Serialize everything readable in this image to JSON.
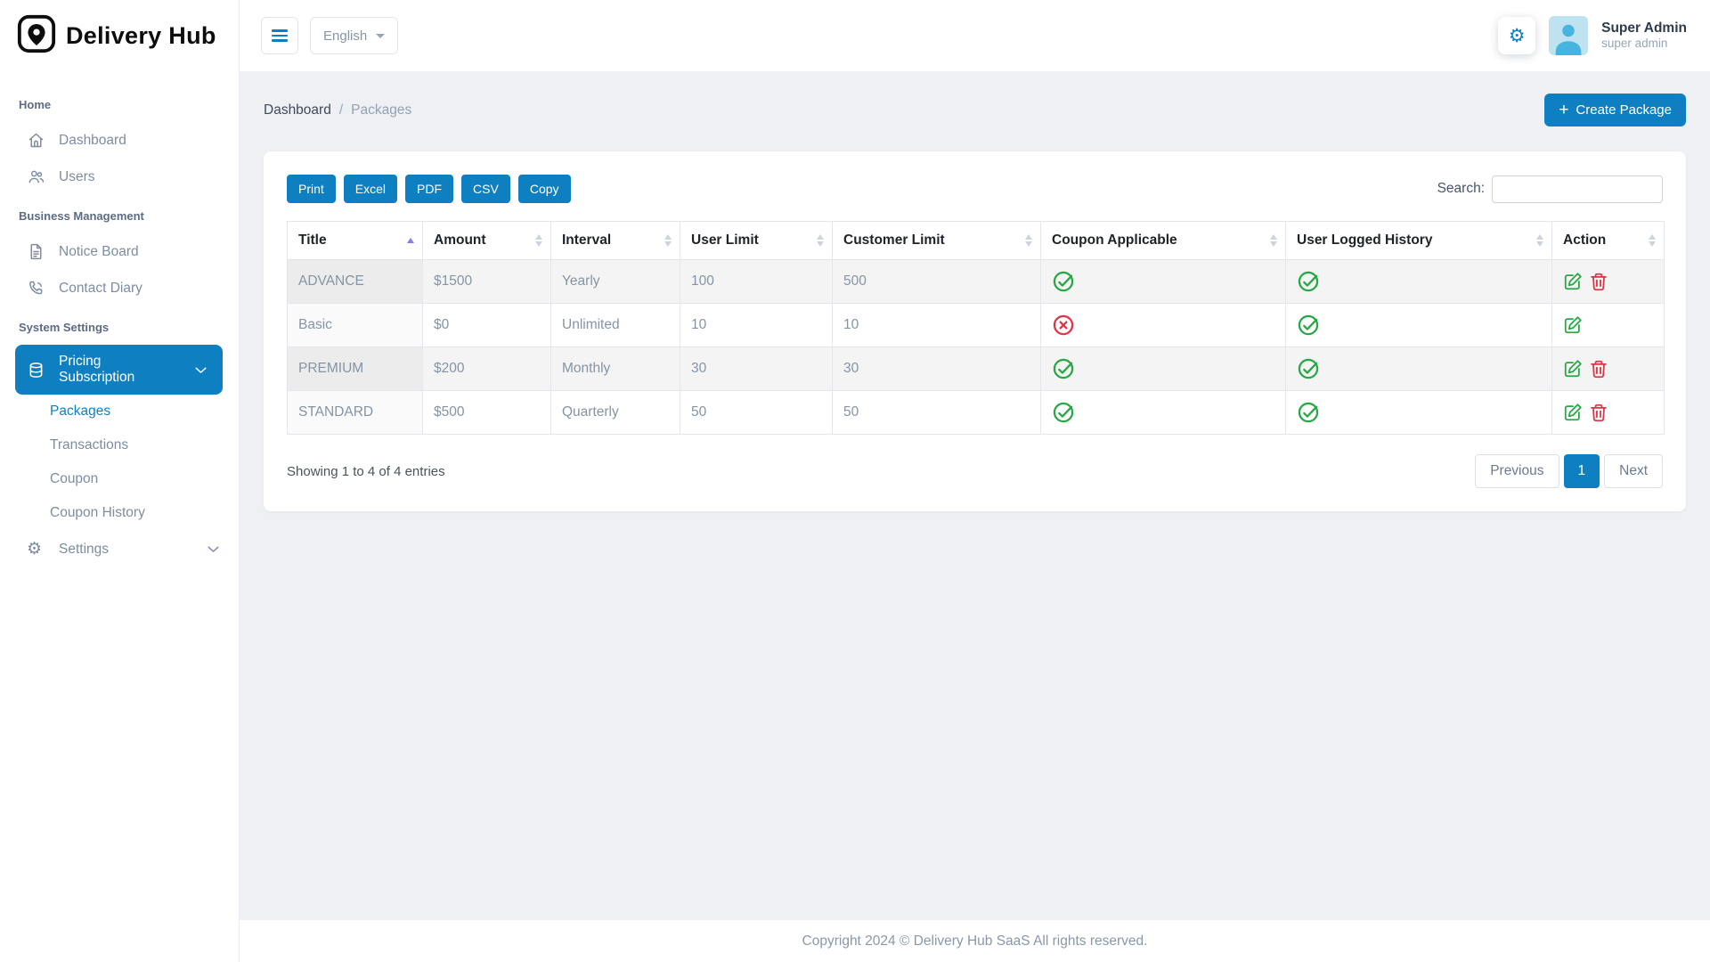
{
  "app": {
    "title": "Delivery Hub"
  },
  "topbar": {
    "language": "English",
    "user": {
      "name": "Super Admin",
      "role": "super admin"
    }
  },
  "sidebar": {
    "sections": [
      {
        "header": "Home",
        "items": [
          {
            "icon": "home-icon",
            "label": "Dashboard"
          },
          {
            "icon": "users-icon",
            "label": "Users"
          }
        ]
      },
      {
        "header": "Business Management",
        "items": [
          {
            "icon": "notice-board-icon",
            "label": "Notice Board"
          },
          {
            "icon": "contact-diary-icon",
            "label": "Contact Diary"
          }
        ]
      },
      {
        "header": "System Settings",
        "items": [
          {
            "icon": "pricing-subscription-icon",
            "label": "Pricing Subscription",
            "active": true,
            "chevron": true,
            "children": [
              {
                "label": "Packages",
                "active": true
              },
              {
                "label": "Transactions"
              },
              {
                "label": "Coupon"
              },
              {
                "label": "Coupon History"
              }
            ]
          },
          {
            "icon": "settings-icon",
            "label": "Settings",
            "chevron": true
          }
        ]
      }
    ]
  },
  "breadcrumb": {
    "items": [
      "Dashboard",
      "Packages"
    ]
  },
  "page": {
    "create_button": "Create Package"
  },
  "table": {
    "export_buttons": [
      "Print",
      "Excel",
      "PDF",
      "CSV",
      "Copy"
    ],
    "search_label": "Search:",
    "search_value": "",
    "columns": [
      {
        "label": "Title",
        "sort": "asc"
      },
      {
        "label": "Amount",
        "sort": "both"
      },
      {
        "label": "Interval",
        "sort": "both"
      },
      {
        "label": "User Limit",
        "sort": "both"
      },
      {
        "label": "Customer Limit",
        "sort": "both"
      },
      {
        "label": "Coupon Applicable",
        "sort": "both"
      },
      {
        "label": "User Logged History",
        "sort": "both"
      },
      {
        "label": "Action",
        "sort": "both"
      }
    ],
    "rows": [
      {
        "title": "ADVANCE",
        "amount": "$1500",
        "interval": "Yearly",
        "user_limit": "100",
        "customer_limit": "500",
        "coupon_applicable": true,
        "user_logged_history": true,
        "actions": [
          "edit",
          "delete"
        ]
      },
      {
        "title": "Basic",
        "amount": "$0",
        "interval": "Unlimited",
        "user_limit": "10",
        "customer_limit": "10",
        "coupon_applicable": false,
        "user_logged_history": true,
        "actions": [
          "edit"
        ]
      },
      {
        "title": "PREMIUM",
        "amount": "$200",
        "interval": "Monthly",
        "user_limit": "30",
        "customer_limit": "30",
        "coupon_applicable": true,
        "user_logged_history": true,
        "actions": [
          "edit",
          "delete"
        ]
      },
      {
        "title": "STANDARD",
        "amount": "$500",
        "interval": "Quarterly",
        "user_limit": "50",
        "customer_limit": "50",
        "coupon_applicable": true,
        "user_logged_history": true,
        "actions": [
          "edit",
          "delete"
        ]
      }
    ],
    "info": "Showing 1 to 4 of 4 entries",
    "pagination": {
      "previous": "Previous",
      "current": "1",
      "next": "Next"
    }
  },
  "footer": {
    "copyright": "Copyright 2024 © Delivery Hub SaaS All rights reserved."
  }
}
